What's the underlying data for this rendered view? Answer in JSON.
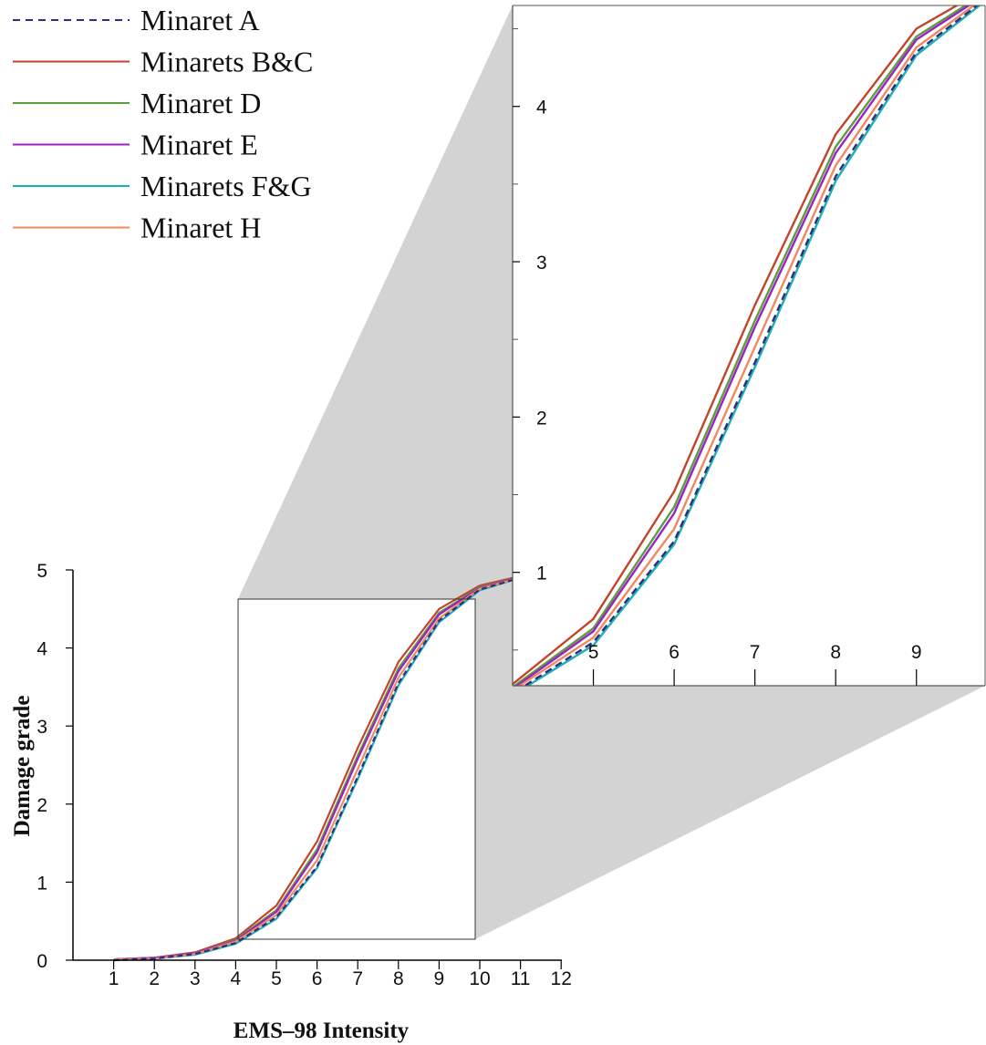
{
  "chart_data": {
    "type": "line",
    "xlabel": "EMS–98 Intensity",
    "ylabel": "Damage grade",
    "xlim": [
      0,
      12
    ],
    "ylim": [
      0,
      5
    ],
    "x_ticks": [
      "1",
      "2",
      "3",
      "4",
      "5",
      "6",
      "7",
      "8",
      "9",
      "10",
      "11",
      "12"
    ],
    "y_ticks": [
      "0",
      "1",
      "2",
      "3",
      "4",
      "5"
    ],
    "x": [
      1,
      2,
      3,
      4,
      5,
      6,
      7,
      8,
      9,
      10,
      11
    ],
    "series": [
      {
        "name": "Minaret A",
        "color": "#2e2e7e",
        "dash": true,
        "values": [
          0.0,
          0.02,
          0.08,
          0.22,
          0.55,
          1.2,
          2.35,
          3.55,
          4.35,
          4.75,
          4.9
        ]
      },
      {
        "name": "Minarets B&C",
        "color": "#c0452a",
        "dash": false,
        "values": [
          0.01,
          0.03,
          0.1,
          0.28,
          0.7,
          1.52,
          2.72,
          3.82,
          4.5,
          4.8,
          4.92
        ]
      },
      {
        "name": "Minaret D",
        "color": "#5c9e3a",
        "dash": false,
        "values": [
          0.01,
          0.03,
          0.09,
          0.26,
          0.64,
          1.42,
          2.62,
          3.74,
          4.45,
          4.78,
          4.91
        ]
      },
      {
        "name": "Minaret E",
        "color": "#9a22c8",
        "dash": false,
        "values": [
          0.01,
          0.03,
          0.09,
          0.25,
          0.62,
          1.38,
          2.58,
          3.7,
          4.43,
          4.77,
          4.91
        ]
      },
      {
        "name": "Minarets F&G",
        "color": "#1eb0b8",
        "dash": false,
        "values": [
          0.0,
          0.02,
          0.07,
          0.21,
          0.53,
          1.18,
          2.32,
          3.52,
          4.33,
          4.74,
          4.9
        ]
      },
      {
        "name": "Minaret H",
        "color": "#f08a5e",
        "dash": false,
        "values": [
          0.01,
          0.02,
          0.08,
          0.24,
          0.58,
          1.28,
          2.45,
          3.62,
          4.38,
          4.76,
          4.9
        ]
      }
    ],
    "inset": {
      "xlim": [
        4.0,
        9.85
      ],
      "ylim": [
        0.27,
        4.65
      ],
      "x_ticks": [
        "5",
        "6",
        "7",
        "8",
        "9"
      ],
      "y_ticks": [
        "1",
        "2",
        "3",
        "4"
      ]
    },
    "legend_position": "top-left",
    "grid": false
  }
}
